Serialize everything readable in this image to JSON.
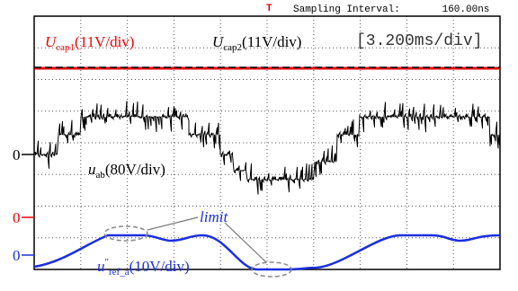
{
  "header": {
    "trigger": "T",
    "sampling_label": "Sampling Interval:",
    "sampling_value": "160.00ns"
  },
  "labels": {
    "cap1": {
      "symbol": "U",
      "subscript": "cap1",
      "scale": "(11V/div)"
    },
    "cap2": {
      "symbol": "U",
      "subscript": "cap2",
      "scale": "(11V/div)"
    },
    "timebase": "[3.200ms/div]",
    "uab": {
      "symbol": "u",
      "subscript": "ab",
      "scale": "(80V/div)"
    },
    "limit": "limit",
    "uref": {
      "symbol": "u",
      "superscript": "\"",
      "subscript": "ref_a",
      "scale": "(10V/div)"
    }
  },
  "markers": {
    "black": "0",
    "red": "0",
    "blue": "0"
  }
}
